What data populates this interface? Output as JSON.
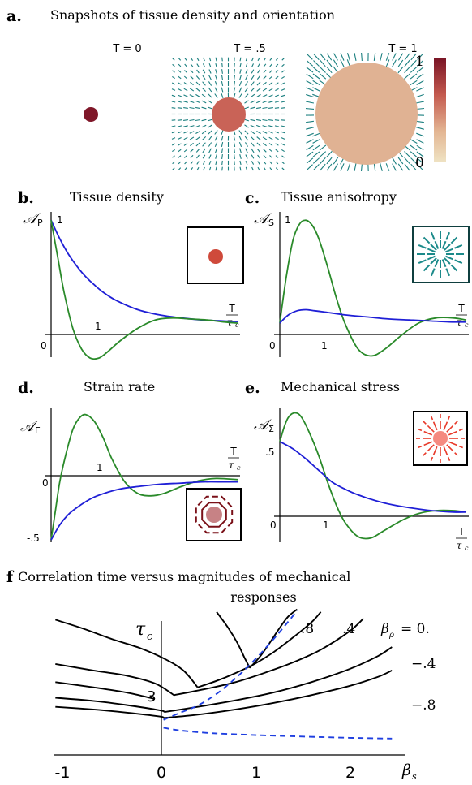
{
  "figure": {
    "a": {
      "letter": "a.",
      "title": "Snapshots of tissue density and orientation",
      "snapshots": [
        {
          "label": "T = 0",
          "density": 0.9
        },
        {
          "label": "T = .5",
          "density": 0.6
        },
        {
          "label": "T = 1",
          "density": 0.3
        }
      ],
      "colorbar": {
        "max_label": "1",
        "min_label": "0",
        "colors": [
          "#7a1526",
          "#c45a4f",
          "#e3b592",
          "#efe3c3"
        ]
      }
    },
    "b": {
      "letter": "b.",
      "title": "Tissue density",
      "ylabel": "𝒜",
      "ysub": "P",
      "xlabel_num": "T",
      "xlabel_den": "τ",
      "xlabel_den_sub": "c",
      "tick_labels": {
        "one_y": "1",
        "one_x": "1",
        "zero": "0"
      }
    },
    "c": {
      "letter": "c.",
      "title": "Tissue anisotropy",
      "ylabel": "𝒜",
      "ysub": "S",
      "xlabel_num": "T",
      "xlabel_den": "τ",
      "xlabel_den_sub": "c",
      "tick_labels": {
        "one_y": "1",
        "one_x": "1",
        "zero": "0"
      }
    },
    "d": {
      "letter": "d.",
      "title": "Strain rate",
      "ylabel": "𝒜",
      "ysub": "Γ",
      "xlabel_num": "T",
      "xlabel_den": "τ",
      "xlabel_den_sub": "c",
      "tick_labels": {
        "one_x": "1",
        "zero": "0",
        "neg": "-.5"
      }
    },
    "e": {
      "letter": "e.",
      "title": "Mechanical stress",
      "ylabel": "𝒜",
      "ysub": "Σ",
      "xlabel_num": "T",
      "xlabel_den": "τ",
      "xlabel_den_sub": "c",
      "tick_labels": {
        "half": ".5",
        "one_x": "1",
        "zero": "0"
      }
    },
    "f": {
      "letter": "f",
      "title_line1": "Correlation time versus magnitudes of mechanical",
      "title_line2": "responses",
      "ylabel": "τ",
      "ylabel_sub": "c",
      "xlabel": "β",
      "xlabel_sub": "s",
      "ytick": "3",
      "xticks": [
        "-1",
        "0",
        "1",
        "2"
      ],
      "curve_labels": [
        ".8",
        ".4",
        "β",
        "= 0.",
        "ρ",
        "−.4",
        "−.8"
      ]
    }
  },
  "chart_data": [
    {
      "panel": "b",
      "type": "line",
      "xlim": [
        0,
        4.3
      ],
      "ylim": [
        -0.45,
        1.05
      ],
      "series": [
        {
          "color": "#1f1fd6",
          "x": [
            0,
            0.2,
            0.4,
            0.6,
            0.8,
            1,
            1.2,
            1.5,
            2,
            2.5,
            3,
            3.5,
            4,
            4.3
          ],
          "y": [
            1,
            0.82,
            0.67,
            0.55,
            0.45,
            0.37,
            0.3,
            0.22,
            0.13,
            0.08,
            0.05,
            0.03,
            0.02,
            0.015
          ]
        },
        {
          "color": "#2a8a2a",
          "x": [
            0,
            0.15,
            0.3,
            0.5,
            0.7,
            0.9,
            1.1,
            1.3,
            1.6,
            2,
            2.4,
            2.8,
            3.2,
            3.6,
            4,
            4.3
          ],
          "y": [
            1,
            0.65,
            0.3,
            -0.05,
            -0.25,
            -0.34,
            -0.34,
            -0.28,
            -0.17,
            -0.05,
            0.03,
            0.05,
            0.04,
            0.03,
            0.01,
            0.0
          ]
        }
      ]
    },
    {
      "panel": "c",
      "type": "line",
      "xlim": [
        0,
        4.3
      ],
      "ylim": [
        -0.45,
        1.05
      ],
      "series": [
        {
          "color": "#2a8a2a",
          "x": [
            0,
            0.15,
            0.3,
            0.45,
            0.6,
            0.75,
            0.9,
            1.1,
            1.3,
            1.5,
            1.8,
            2.1,
            2.4,
            2.8,
            3.2,
            3.6,
            4,
            4.3
          ],
          "y": [
            0,
            0.45,
            0.8,
            0.96,
            1,
            0.95,
            0.82,
            0.55,
            0.25,
            0.0,
            -0.25,
            -0.32,
            -0.26,
            -0.12,
            0.0,
            0.05,
            0.05,
            0.03
          ]
        },
        {
          "color": "#1f1fd6",
          "x": [
            0,
            0.2,
            0.4,
            0.6,
            0.8,
            1,
            1.5,
            2,
            2.5,
            3,
            3.5,
            4,
            4.3
          ],
          "y": [
            0,
            0.08,
            0.12,
            0.13,
            0.12,
            0.11,
            0.08,
            0.06,
            0.04,
            0.03,
            0.02,
            0.01,
            0.01
          ]
        }
      ]
    },
    {
      "panel": "d",
      "type": "line",
      "xlim": [
        0,
        4.3
      ],
      "ylim": [
        -0.52,
        0.62
      ],
      "series": [
        {
          "color": "#2a8a2a",
          "x": [
            0,
            0.1,
            0.2,
            0.35,
            0.5,
            0.65,
            0.8,
            1,
            1.2,
            1.4,
            1.7,
            2,
            2.3,
            2.6,
            3,
            3.4,
            3.8,
            4.3
          ],
          "y": [
            -0.5,
            -0.25,
            0.0,
            0.25,
            0.45,
            0.55,
            0.58,
            0.52,
            0.38,
            0.2,
            0.0,
            -0.1,
            -0.12,
            -0.1,
            -0.04,
            0.01,
            0.03,
            0.02
          ]
        },
        {
          "color": "#1f1fd6",
          "x": [
            0,
            0.2,
            0.4,
            0.6,
            0.8,
            1,
            1.3,
            1.6,
            2,
            2.5,
            3,
            3.5,
            4,
            4.3
          ],
          "y": [
            -0.5,
            -0.37,
            -0.28,
            -0.22,
            -0.17,
            -0.13,
            -0.09,
            -0.06,
            -0.04,
            -0.02,
            -0.01,
            0.0,
            0.0,
            0.0
          ]
        }
      ]
    },
    {
      "panel": "e",
      "type": "line",
      "xlim": [
        0,
        4.3
      ],
      "ylim": [
        -0.2,
        0.72
      ],
      "series": [
        {
          "color": "#2a8a2a",
          "x": [
            0,
            0.1,
            0.2,
            0.35,
            0.5,
            0.7,
            0.9,
            1.1,
            1.3,
            1.5,
            1.8,
            2.1,
            2.4,
            2.8,
            3.2,
            3.6,
            4,
            4.3
          ],
          "y": [
            0.5,
            0.6,
            0.67,
            0.7,
            0.67,
            0.55,
            0.4,
            0.22,
            0.06,
            -0.06,
            -0.16,
            -0.17,
            -0.12,
            -0.05,
            0.0,
            0.02,
            0.02,
            0.01
          ]
        },
        {
          "color": "#1f1fd6",
          "x": [
            0,
            0.3,
            0.6,
            0.9,
            1.2,
            1.5,
            1.8,
            2.2,
            2.6,
            3,
            3.5,
            4,
            4.3
          ],
          "y": [
            0.5,
            0.45,
            0.38,
            0.3,
            0.22,
            0.17,
            0.13,
            0.09,
            0.06,
            0.04,
            0.02,
            0.01,
            0.01
          ]
        }
      ]
    },
    {
      "panel": "f",
      "type": "line",
      "xlim": [
        -1.12,
        2.55
      ],
      "ylim": [
        0.2,
        5.6
      ],
      "series": [
        {
          "color": "#000000",
          "x": [
            -1.1,
            -0.8,
            -0.5,
            -0.2,
            0.05,
            0.25,
            0.4
          ],
          "y": [
            5.4,
            5.05,
            4.65,
            4.3,
            3.9,
            3.45,
            2.8
          ]
        },
        {
          "color": "#000000",
          "x": [
            -1.1,
            -0.7,
            -0.35,
            -0.05,
            0.15
          ],
          "y": [
            3.7,
            3.45,
            3.25,
            2.95,
            2.5
          ]
        },
        {
          "color": "#000000",
          "x": [
            -1.1,
            -0.7,
            -0.35,
            -0.05
          ],
          "y": [
            3.0,
            2.8,
            2.6,
            2.35
          ]
        },
        {
          "color": "#000000",
          "x": [
            -1.1,
            -0.7,
            -0.35,
            0.0,
            0.05
          ],
          "y": [
            2.4,
            2.28,
            2.12,
            1.92,
            1.85
          ]
        },
        {
          "color": "#000000",
          "x": [
            -1.1,
            -0.7,
            -0.35,
            0.0,
            0.04
          ],
          "y": [
            2.05,
            1.95,
            1.83,
            1.68,
            1.62
          ]
        },
        {
          "color": "#000000",
          "x": [
            0.6,
            0.72,
            0.82,
            0.9,
            0.95
          ],
          "y": [
            5.7,
            5.1,
            4.5,
            3.9,
            3.55
          ]
        },
        {
          "color": "#000000",
          "x": [
            0.95,
            1.05,
            1.15,
            1.25,
            1.35,
            1.45
          ],
          "y": [
            3.55,
            3.95,
            4.45,
            5.0,
            5.5,
            5.8
          ]
        },
        {
          "color": "#000000",
          "x": [
            0.4,
            0.6,
            0.8,
            1.0,
            1.2,
            1.4,
            1.6,
            1.7
          ],
          "y": [
            2.8,
            3.05,
            3.35,
            3.7,
            4.15,
            4.7,
            5.3,
            5.7
          ]
        },
        {
          "color": "#000000",
          "x": [
            0.15,
            0.5,
            0.8,
            1.1,
            1.4,
            1.7,
            2.0,
            2.15
          ],
          "y": [
            2.5,
            2.75,
            3.0,
            3.35,
            3.75,
            4.25,
            4.95,
            5.45
          ]
        },
        {
          "color": "#000000",
          "x": [
            0.05,
            0.4,
            0.8,
            1.2,
            1.6,
            2.0,
            2.3,
            2.45
          ],
          "y": [
            1.85,
            2.05,
            2.3,
            2.6,
            3.0,
            3.5,
            4.0,
            4.35
          ]
        },
        {
          "color": "#000000",
          "x": [
            0.04,
            0.4,
            0.8,
            1.2,
            1.6,
            2.0,
            2.3,
            2.45
          ],
          "y": [
            1.62,
            1.75,
            1.95,
            2.2,
            2.5,
            2.85,
            3.2,
            3.45
          ]
        },
        {
          "color": "#1f3fe0",
          "dash": true,
          "x": [
            0.04,
            0.2,
            0.4,
            0.6,
            0.8,
            1.0,
            1.2,
            1.35,
            1.45
          ],
          "y": [
            1.55,
            1.8,
            2.1,
            2.55,
            3.15,
            3.85,
            4.65,
            5.3,
            5.75
          ]
        },
        {
          "color": "#1f3fe0",
          "dash": true,
          "x": [
            0.04,
            0.2,
            0.5,
            0.9,
            1.4,
            2.0,
            2.45
          ],
          "y": [
            1.25,
            1.15,
            1.05,
            0.98,
            0.92,
            0.86,
            0.83
          ]
        }
      ]
    }
  ]
}
